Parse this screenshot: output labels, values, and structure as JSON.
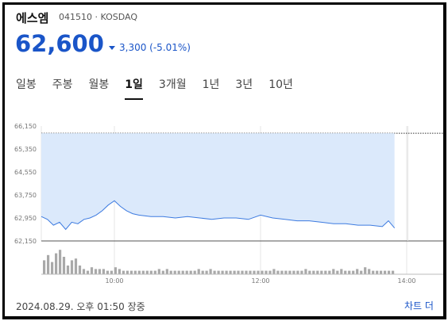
{
  "stock": {
    "name": "에스엠",
    "code_market": "041510 · KOSDAQ",
    "price": "62,600",
    "change": "3,300 (-5.01%)",
    "change_color": "#1a55c8"
  },
  "tabs": [
    {
      "label": "일봉",
      "active": false
    },
    {
      "label": "주봉",
      "active": false
    },
    {
      "label": "월봉",
      "active": false
    },
    {
      "label": "1일",
      "active": true
    },
    {
      "label": "3개월",
      "active": false
    },
    {
      "label": "1년",
      "active": false
    },
    {
      "label": "3년",
      "active": false
    },
    {
      "label": "10년",
      "active": false
    }
  ],
  "footer": {
    "timestamp": "2024.08.29. 오후 01:50 장중",
    "chart_link": "차트 더"
  },
  "chart_data": {
    "type": "line",
    "y_ticks": [
      "66,150",
      "65,350",
      "64,550",
      "63,750",
      "62,950",
      "62,150"
    ],
    "ylim": [
      62150,
      66150
    ],
    "x_ticks": [
      "10:00",
      "12:00",
      "14:00"
    ],
    "xlim": [
      "09:00",
      "14:30"
    ],
    "reference_line": 65900,
    "series": [
      {
        "x": [
          "09:00",
          "09:05",
          "09:10",
          "09:15",
          "09:20",
          "09:25",
          "09:30",
          "09:35",
          "09:40",
          "09:45",
          "09:50",
          "09:55",
          "10:00",
          "10:05",
          "10:10",
          "10:15",
          "10:20",
          "10:30",
          "10:40",
          "10:50",
          "11:00",
          "11:10",
          "11:20",
          "11:30",
          "11:40",
          "11:50",
          "12:00",
          "12:10",
          "12:20",
          "12:30",
          "12:40",
          "12:50",
          "13:00",
          "13:10",
          "13:20",
          "13:30",
          "13:40",
          "13:45",
          "13:50"
        ],
        "values": [
          63000,
          62900,
          62700,
          62800,
          62550,
          62800,
          62750,
          62900,
          62950,
          63050,
          63200,
          63400,
          63550,
          63350,
          63200,
          63100,
          63050,
          63000,
          63000,
          62950,
          63000,
          62950,
          62900,
          62950,
          62950,
          62900,
          63050,
          62950,
          62900,
          62850,
          62850,
          62800,
          62750,
          62750,
          62700,
          62700,
          62650,
          62850,
          62600
        ]
      }
    ],
    "volume": [
      8,
      11,
      7,
      12,
      14,
      10,
      5,
      8,
      9,
      5,
      3,
      2,
      4,
      3,
      3,
      3,
      2,
      2,
      4,
      3,
      2,
      2,
      2,
      2,
      2,
      2,
      2,
      2,
      2,
      3,
      2,
      3,
      2,
      2,
      2,
      2,
      2,
      2,
      2,
      3,
      2,
      2,
      3,
      2,
      2,
      2,
      2,
      2,
      2,
      2,
      2,
      2,
      2,
      2,
      2,
      2,
      2,
      2,
      3,
      2,
      2,
      2,
      2,
      2,
      2,
      2,
      3,
      2,
      2,
      2,
      2,
      2,
      2,
      3,
      2,
      3,
      2,
      2,
      2,
      3,
      2,
      4,
      3,
      2,
      2,
      2,
      2,
      2,
      2
    ]
  }
}
